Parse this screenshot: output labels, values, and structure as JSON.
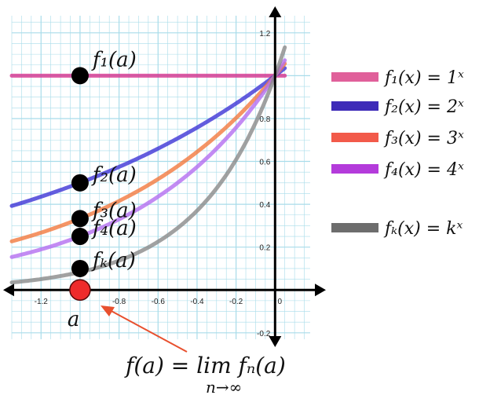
{
  "chart_data": {
    "type": "line",
    "xlim": [
      -1.35,
      0.18
    ],
    "ylim": [
      -0.23,
      1.28
    ],
    "grid": true,
    "x_ticks": [
      -1.2,
      -1.0,
      -0.8,
      -0.6,
      -0.4,
      -0.2,
      0
    ],
    "x_tick_labels": [
      "-1.2",
      "",
      "-0.8",
      "-0.6",
      "-0.4",
      "-0.2",
      "0"
    ],
    "y_ticks": [
      -0.2,
      0.2,
      0.4,
      0.6,
      0.8,
      1.0,
      1.2
    ],
    "y_tick_labels": [
      "-0.2",
      "0.2",
      "0.4",
      "0.6",
      "0.8",
      "",
      "1.2"
    ],
    "series": [
      {
        "base": 1,
        "color": "#d6338f",
        "legend": "f₁(x) = 1ˣ"
      },
      {
        "base": 2,
        "color": "#3d35d6",
        "legend": "f₂(x) = 2ˣ"
      },
      {
        "base": 3,
        "color": "#f2793f",
        "legend": "f₃(x) = 3ˣ"
      },
      {
        "base": 4,
        "color": "#b46ef0",
        "legend": "f₄(x) = 4ˣ"
      },
      {
        "base": 12,
        "color": "#8a8a8a",
        "legend": "fₖ(x) = kˣ"
      }
    ],
    "x_range": [
      -1.35,
      0.05
    ],
    "a": -1.0,
    "points": [
      {
        "y": 1.0,
        "label": "f₁(a)"
      },
      {
        "y": 0.5,
        "label": "f₂(a)"
      },
      {
        "y": 0.333,
        "label": "f₃(a)"
      },
      {
        "y": 0.25,
        "label": "f₄(a)"
      },
      {
        "y": 0.1,
        "label": "fₖ(a)"
      }
    ],
    "a_label": "a",
    "formula": "f(a) = lim fₙ(a)",
    "formula_sub": "n→∞",
    "legend_swatch_colors": [
      "#e0609a",
      "#3e2bb8",
      "#f25a4a",
      "#b43bdb",
      "#6d6d6d"
    ],
    "legend_text_colors": [
      "#111111"
    ],
    "grid_color": "#a8dcea",
    "a_point_color": "#ee2b2b",
    "arrow_color": "#e8502e"
  }
}
